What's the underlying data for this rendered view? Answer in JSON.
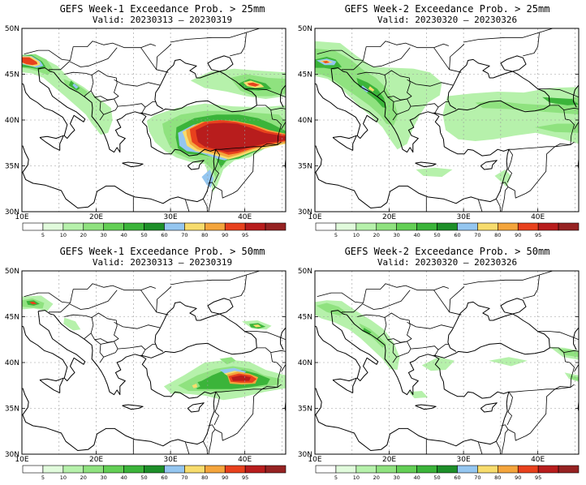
{
  "panels": [
    {
      "title": "GEFS Week-1 Exceedance Prob. > 25mm",
      "valid": "Valid: 20230313 – 20230319"
    },
    {
      "title": "GEFS Week-2 Exceedance Prob. > 25mm",
      "valid": "Valid: 20230320 – 20230326"
    },
    {
      "title": "GEFS Week-1 Exceedance Prob. > 50mm",
      "valid": "Valid: 20230313 – 20230319"
    },
    {
      "title": "GEFS Week-2 Exceedance Prob. > 50mm",
      "valid": "Valid: 20230320 – 20230326"
    }
  ],
  "map": {
    "lat_labels": [
      "50N",
      "45N",
      "40N",
      "35N",
      "30N"
    ],
    "lon_labels": [
      "10E",
      "20E",
      "30E",
      "40E"
    ]
  },
  "colorbar": {
    "labels": [
      "5",
      "10",
      "20",
      "30",
      "40",
      "50",
      "60",
      "70",
      "80",
      "90",
      "95"
    ],
    "colors": [
      "#ffffff",
      "#e1fbdc",
      "#b6f1ab",
      "#8fe27f",
      "#63cf55",
      "#3bb43a",
      "#1d8f29",
      "#94c6f0",
      "#f7dc6d",
      "#f4a53c",
      "#e8411d",
      "#b81d1d",
      "#962222"
    ]
  }
}
